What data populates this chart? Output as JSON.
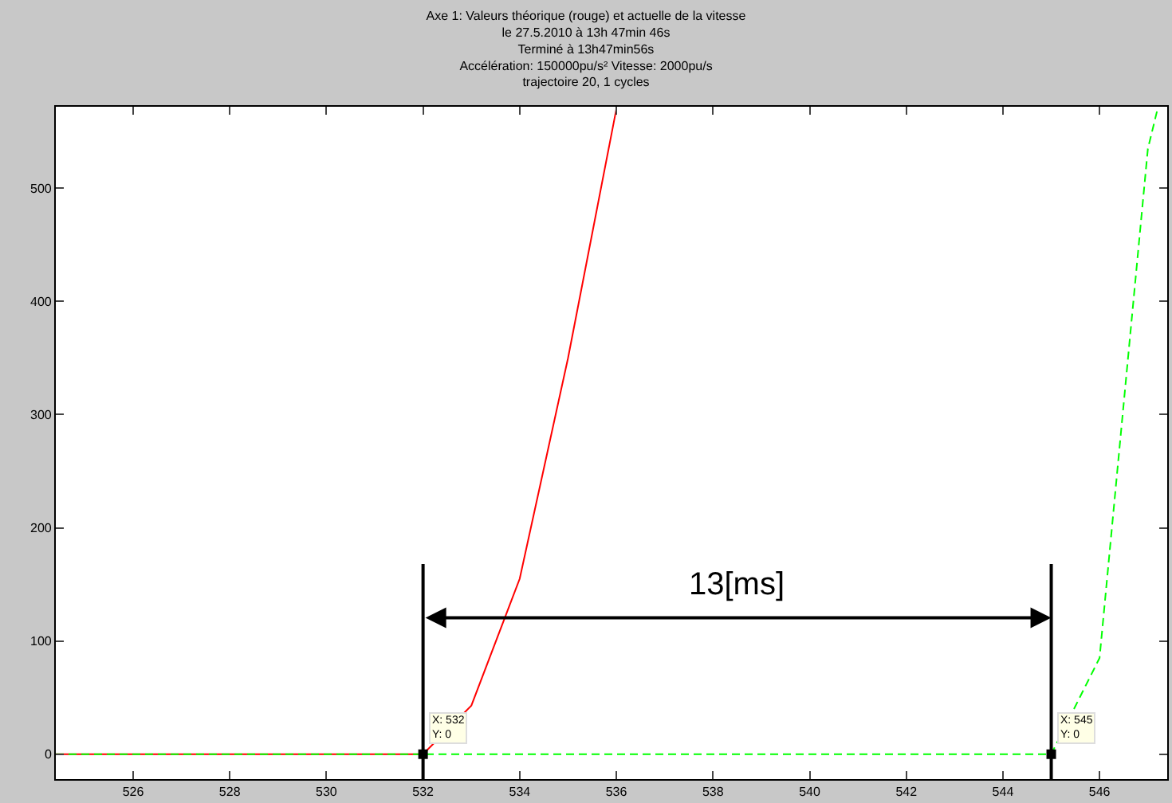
{
  "chart_data": {
    "type": "line",
    "title": "Axe 1: Valeurs théorique (rouge) et actuelle de la vitesse\nle 27.5.2010 à 13h 47min 46s\nTerminé à 13h47min56s\nAccélération: 150000pu/s² Vitesse: 2000pu/s\ntrajectoire 20, 1 cycles",
    "series": [
      {
        "color": "#ff0000",
        "line_style": "solid",
        "x": [
          524.4,
          532,
          533,
          534,
          535,
          536
        ],
        "values": [
          0,
          0,
          43,
          155,
          350,
          570
        ]
      },
      {
        "color": "#00ff00",
        "line_style": "dashed",
        "x": [
          524.4,
          545,
          546,
          547,
          547.2
        ],
        "values": [
          0,
          0,
          85,
          535,
          570
        ]
      }
    ],
    "xlim": [
      524.4,
      547.4
    ],
    "xticks": [
      526,
      528,
      530,
      532,
      534,
      536,
      538,
      540,
      542,
      544,
      546
    ],
    "ylim": [
      -22,
      572
    ],
    "yticks": [
      0,
      100,
      200,
      300,
      400,
      500
    ],
    "marker": "none",
    "ref_lines": [
      {
        "axis": "x",
        "value": 532,
        "color": "#000000"
      },
      {
        "axis": "x",
        "value": 545,
        "color": "#000000"
      }
    ],
    "annotations": [
      "13[ms]",
      {
        "text": "X: 532\nY: 0",
        "x": 532,
        "y": 0
      },
      {
        "text": "X: 545\nY: 0",
        "x": 545,
        "y": 0
      }
    ]
  }
}
